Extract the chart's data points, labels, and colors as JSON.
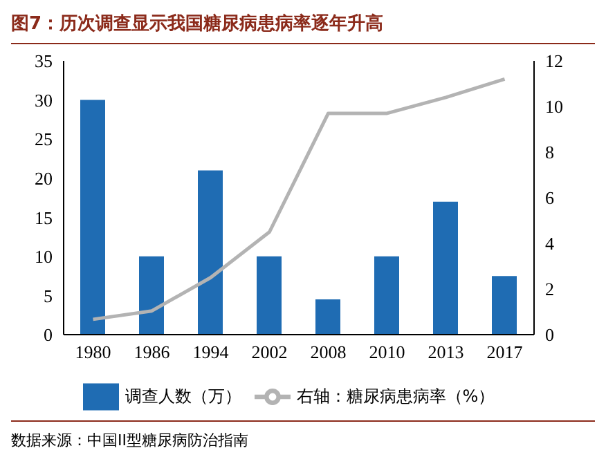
{
  "chart_data": {
    "type": "bar",
    "title": "图7：历次调查显示我国糖尿病患病率逐年升高",
    "categories": [
      "1980",
      "1986",
      "1994",
      "2002",
      "2008",
      "2010",
      "2013",
      "2017"
    ],
    "series": [
      {
        "name": "调查人数（万）",
        "color": "#1f6cb3",
        "values": [
          30,
          10,
          21,
          10,
          4.5,
          10,
          17,
          7.5
        ]
      },
      {
        "name": "右轴：糖尿病患病率（%）",
        "type": "line",
        "axis": "y2",
        "color": "#b3b3b3",
        "values": [
          0.67,
          1.04,
          2.5,
          4.5,
          9.7,
          9.7,
          10.4,
          11.2
        ]
      }
    ],
    "ylim": [
      0,
      35
    ],
    "yticks": [
      0,
      5,
      10,
      15,
      20,
      25,
      30,
      35
    ],
    "y2lim": [
      0,
      12
    ],
    "y2ticks": [
      0,
      2,
      4,
      6,
      8,
      10,
      12
    ],
    "grid": false,
    "legend": "bottom",
    "marker": "none",
    "annotations": [
      "数据来源：中国II型糖尿病防治指南"
    ]
  }
}
